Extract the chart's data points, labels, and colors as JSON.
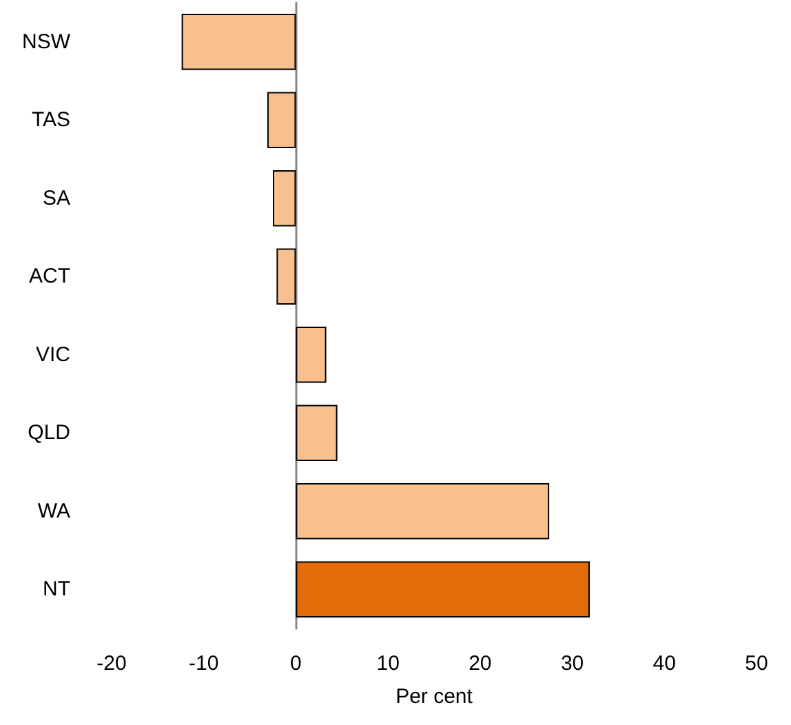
{
  "chart_data": {
    "type": "bar",
    "orientation": "horizontal",
    "categories": [
      "NSW",
      "TAS",
      "SA",
      "ACT",
      "VIC",
      "QLD",
      "WA",
      "NT"
    ],
    "values": [
      -12.4,
      -3.1,
      -2.5,
      -2.1,
      3.3,
      4.5,
      27.5,
      31.9
    ],
    "colors": [
      "#f9c08f",
      "#f9c08f",
      "#f9c08f",
      "#f9c08f",
      "#f9c08f",
      "#f9c08f",
      "#f9c08f",
      "#e36c0a"
    ],
    "xlim": [
      -20,
      50
    ],
    "xticks": [
      -20,
      -10,
      0,
      10,
      20,
      30,
      40,
      50
    ],
    "xlabel": "Per cent"
  }
}
